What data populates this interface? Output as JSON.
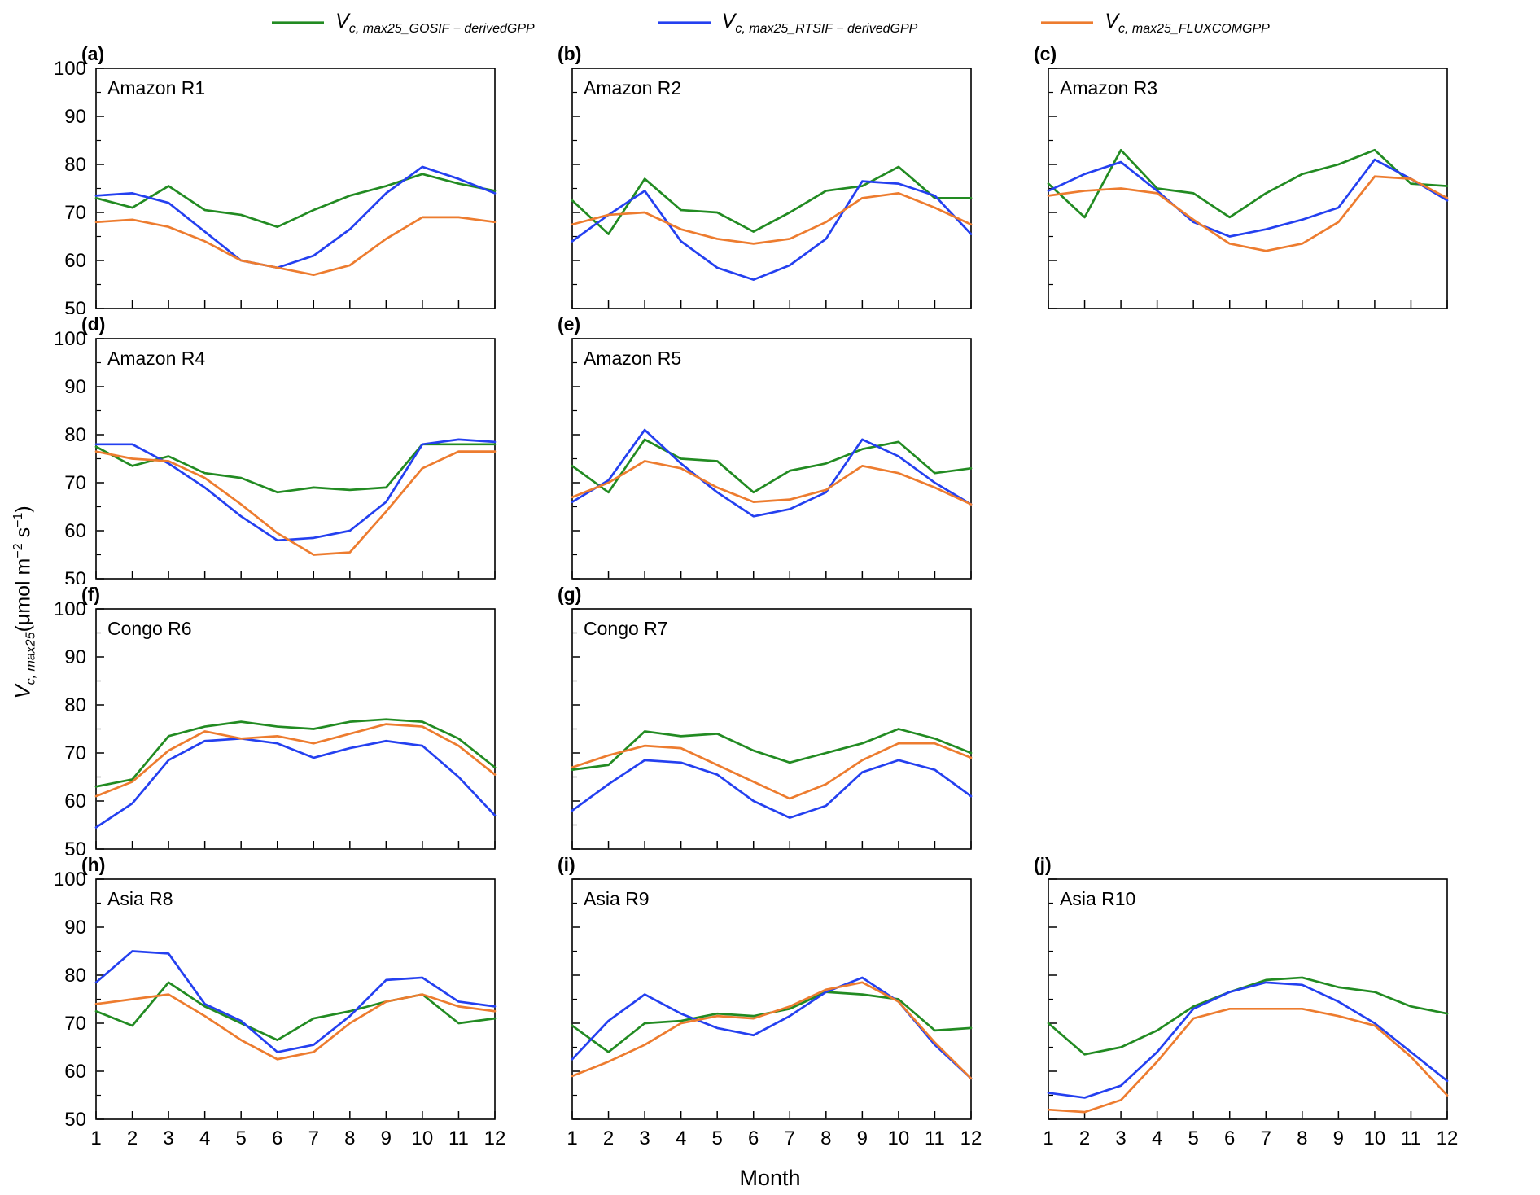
{
  "figure": {
    "xlabel": "Month",
    "ylabel": {
      "main": "V",
      "sub": "c, max25",
      "unit_pre": "(μmol m",
      "sup1": "−2",
      "unit_mid": " s",
      "sup2": "−1",
      "unit_post": ")"
    },
    "legend": {
      "items": [
        {
          "main": "V",
          "sub": "c, max25_GOSIF − derivedGPP",
          "series": "GOSIF-derivedGPP"
        },
        {
          "main": "V",
          "sub": "c, max25_RTSIF − derivedGPP",
          "series": "RTSIF-derivedGPP"
        },
        {
          "main": "V",
          "sub": "c, max25_FLUXCOMGPP",
          "series": "FLUXCOMGPP"
        }
      ]
    }
  },
  "colors": {
    "gosif": "#228B22",
    "rtsif": "#2440F0",
    "fluxcom": "#ED7C2F"
  },
  "axes": {
    "x": [
      1,
      2,
      3,
      4,
      5,
      6,
      7,
      8,
      9,
      10,
      11,
      12
    ],
    "xlim": [
      1,
      12
    ],
    "xticks": [
      1,
      2,
      3,
      4,
      5,
      6,
      7,
      8,
      9,
      10,
      11,
      12
    ],
    "ylim": [
      50,
      100
    ],
    "yticks": [
      50,
      60,
      70,
      80,
      90,
      100
    ],
    "yminor": [
      55,
      65,
      75,
      85,
      95
    ],
    "grid": false,
    "legend_position": "top"
  },
  "chart_data": [
    {
      "type": "line",
      "id": "a",
      "label": "(a)",
      "title": "Amazon R1",
      "row": 1,
      "col": 1,
      "show_y_labels": true,
      "show_x_labels": false,
      "series": [
        {
          "name": "GOSIF-derivedGPP",
          "color": "gosif",
          "values": [
            73,
            71,
            75.5,
            70.5,
            69.5,
            67,
            70.5,
            73.5,
            75.5,
            78,
            76,
            74.5
          ]
        },
        {
          "name": "RTSIF-derivedGPP",
          "color": "rtsif",
          "values": [
            73.5,
            74,
            72,
            66,
            60,
            58.5,
            61,
            66.5,
            74,
            79.5,
            77,
            74
          ]
        },
        {
          "name": "FLUXCOMGPP",
          "color": "fluxcom",
          "values": [
            68,
            68.5,
            67,
            64,
            60,
            58.5,
            57,
            59,
            64.5,
            69,
            69,
            68
          ]
        }
      ]
    },
    {
      "type": "line",
      "id": "b",
      "label": "(b)",
      "title": "Amazon R2",
      "row": 1,
      "col": 2,
      "show_y_labels": false,
      "show_x_labels": false,
      "series": [
        {
          "name": "GOSIF-derivedGPP",
          "color": "gosif",
          "values": [
            72.5,
            65.5,
            77,
            70.5,
            70,
            66,
            70,
            74.5,
            75.5,
            79.5,
            73,
            73
          ]
        },
        {
          "name": "RTSIF-derivedGPP",
          "color": "rtsif",
          "values": [
            64,
            69.5,
            74.5,
            64,
            58.5,
            56,
            59,
            64.5,
            76.5,
            76,
            73.5,
            65.5
          ]
        },
        {
          "name": "FLUXCOMGPP",
          "color": "fluxcom",
          "values": [
            67.5,
            69.5,
            70,
            66.5,
            64.5,
            63.5,
            64.5,
            68,
            73,
            74,
            71,
            67.5
          ]
        }
      ]
    },
    {
      "type": "line",
      "id": "c",
      "label": "(c)",
      "title": "Amazon R3",
      "row": 1,
      "col": 3,
      "show_y_labels": false,
      "show_x_labels": false,
      "series": [
        {
          "name": "GOSIF-derivedGPP",
          "color": "gosif",
          "values": [
            76,
            69,
            83,
            75,
            74,
            69,
            74,
            78,
            80,
            83,
            76,
            75.5
          ]
        },
        {
          "name": "RTSIF-derivedGPP",
          "color": "rtsif",
          "values": [
            74.5,
            78,
            80.5,
            74.5,
            68,
            65,
            66.5,
            68.5,
            71,
            81,
            77,
            72.5
          ]
        },
        {
          "name": "FLUXCOMGPP",
          "color": "fluxcom",
          "values": [
            73.5,
            74.5,
            75,
            74,
            68.5,
            63.5,
            62,
            63.5,
            68,
            77.5,
            77,
            73
          ]
        }
      ]
    },
    {
      "type": "line",
      "id": "d",
      "label": "(d)",
      "title": "Amazon R4",
      "row": 2,
      "col": 1,
      "show_y_labels": true,
      "show_x_labels": false,
      "series": [
        {
          "name": "GOSIF-derivedGPP",
          "color": "gosif",
          "values": [
            77.5,
            73.5,
            75.5,
            72,
            71,
            68,
            69,
            68.5,
            69,
            78,
            78,
            78
          ]
        },
        {
          "name": "RTSIF-derivedGPP",
          "color": "rtsif",
          "values": [
            78,
            78,
            74,
            69,
            63,
            58,
            58.5,
            60,
            66,
            78,
            79,
            78.5
          ]
        },
        {
          "name": "FLUXCOMGPP",
          "color": "fluxcom",
          "values": [
            76.5,
            75,
            74.5,
            71,
            65.5,
            59.5,
            55,
            55.5,
            64,
            73,
            76.5,
            76.5
          ]
        }
      ]
    },
    {
      "type": "line",
      "id": "e",
      "label": "(e)",
      "title": "Amazon R5",
      "row": 2,
      "col": 2,
      "show_y_labels": false,
      "show_x_labels": false,
      "series": [
        {
          "name": "GOSIF-derivedGPP",
          "color": "gosif",
          "values": [
            73.5,
            68,
            79,
            75,
            74.5,
            68,
            72.5,
            74,
            77,
            78.5,
            72,
            73
          ]
        },
        {
          "name": "RTSIF-derivedGPP",
          "color": "rtsif",
          "values": [
            66,
            70.5,
            81,
            74,
            68,
            63,
            64.5,
            68,
            79,
            75.5,
            70,
            65.5
          ]
        },
        {
          "name": "FLUXCOMGPP",
          "color": "fluxcom",
          "values": [
            67,
            70,
            74.5,
            73,
            69,
            66,
            66.5,
            68.5,
            73.5,
            72,
            69,
            65.5
          ]
        }
      ]
    },
    {
      "type": "line",
      "id": "f",
      "label": "(f)",
      "title": "Congo R6",
      "row": 3,
      "col": 1,
      "show_y_labels": true,
      "show_x_labels": false,
      "series": [
        {
          "name": "GOSIF-derivedGPP",
          "color": "gosif",
          "values": [
            63,
            64.5,
            73.5,
            75.5,
            76.5,
            75.5,
            75,
            76.5,
            77,
            76.5,
            73,
            67
          ]
        },
        {
          "name": "RTSIF-derivedGPP",
          "color": "rtsif",
          "values": [
            54.5,
            59.5,
            68.5,
            72.5,
            73,
            72,
            69,
            71,
            72.5,
            71.5,
            65,
            57
          ]
        },
        {
          "name": "FLUXCOMGPP",
          "color": "fluxcom",
          "values": [
            61,
            64,
            70.5,
            74.5,
            73,
            73.5,
            72,
            74,
            76,
            75.5,
            71.5,
            65.5
          ]
        }
      ]
    },
    {
      "type": "line",
      "id": "g",
      "label": "(g)",
      "title": "Congo R7",
      "row": 3,
      "col": 2,
      "show_y_labels": false,
      "show_x_labels": false,
      "series": [
        {
          "name": "GOSIF-derivedGPP",
          "color": "gosif",
          "values": [
            66.5,
            67.5,
            74.5,
            73.5,
            74,
            70.5,
            68,
            70,
            72,
            75,
            73,
            70
          ]
        },
        {
          "name": "RTSIF-derivedGPP",
          "color": "rtsif",
          "values": [
            58,
            63.5,
            68.5,
            68,
            65.5,
            60,
            56.5,
            59,
            66,
            68.5,
            66.5,
            61
          ]
        },
        {
          "name": "FLUXCOMGPP",
          "color": "fluxcom",
          "values": [
            67,
            69.5,
            71.5,
            71,
            67.5,
            64,
            60.5,
            63.5,
            68.5,
            72,
            72,
            69
          ]
        }
      ]
    },
    {
      "type": "line",
      "id": "h",
      "label": "(h)",
      "title": "Asia R8",
      "row": 4,
      "col": 1,
      "show_y_labels": true,
      "show_x_labels": true,
      "series": [
        {
          "name": "GOSIF-derivedGPP",
          "color": "gosif",
          "values": [
            72.5,
            69.5,
            78.5,
            73.5,
            70,
            66.5,
            71,
            72.5,
            74.5,
            76,
            70,
            71
          ]
        },
        {
          "name": "RTSIF-derivedGPP",
          "color": "rtsif",
          "values": [
            78.5,
            85,
            84.5,
            74,
            70.5,
            64,
            65.5,
            71.5,
            79,
            79.5,
            74.5,
            73.5
          ]
        },
        {
          "name": "FLUXCOMGPP",
          "color": "fluxcom",
          "values": [
            74,
            75,
            76,
            71.5,
            66.5,
            62.5,
            64,
            70,
            74.5,
            76,
            73.5,
            72.5
          ]
        }
      ]
    },
    {
      "type": "line",
      "id": "i",
      "label": "(i)",
      "title": "Asia R9",
      "row": 4,
      "col": 2,
      "show_y_labels": false,
      "show_x_labels": true,
      "series": [
        {
          "name": "GOSIF-derivedGPP",
          "color": "gosif",
          "values": [
            69.5,
            64,
            70,
            70.5,
            72,
            71.5,
            73,
            76.5,
            76,
            75,
            68.5,
            69
          ]
        },
        {
          "name": "RTSIF-derivedGPP",
          "color": "rtsif",
          "values": [
            62.5,
            70.5,
            76,
            72,
            69,
            67.5,
            71.5,
            76.5,
            79.5,
            74.5,
            65.5,
            58.5
          ]
        },
        {
          "name": "FLUXCOMGPP",
          "color": "fluxcom",
          "values": [
            59,
            62,
            65.5,
            70,
            71.5,
            71,
            73.5,
            77,
            78.5,
            74.5,
            66,
            58.5
          ]
        }
      ]
    },
    {
      "type": "line",
      "id": "j",
      "label": "(j)",
      "title": "Asia R10",
      "row": 4,
      "col": 3,
      "show_y_labels": false,
      "show_x_labels": true,
      "series": [
        {
          "name": "GOSIF-derivedGPP",
          "color": "gosif",
          "values": [
            70,
            63.5,
            65,
            68.5,
            73.5,
            76.5,
            79,
            79.5,
            77.5,
            76.5,
            73.5,
            72
          ]
        },
        {
          "name": "RTSIF-derivedGPP",
          "color": "rtsif",
          "values": [
            55.5,
            54.5,
            57,
            64,
            73,
            76.5,
            78.5,
            78,
            74.5,
            70,
            64,
            58
          ]
        },
        {
          "name": "FLUXCOMGPP",
          "color": "fluxcom",
          "values": [
            52,
            51.5,
            54,
            62,
            71,
            73,
            73,
            73,
            71.5,
            69.5,
            63,
            55
          ]
        }
      ]
    }
  ]
}
